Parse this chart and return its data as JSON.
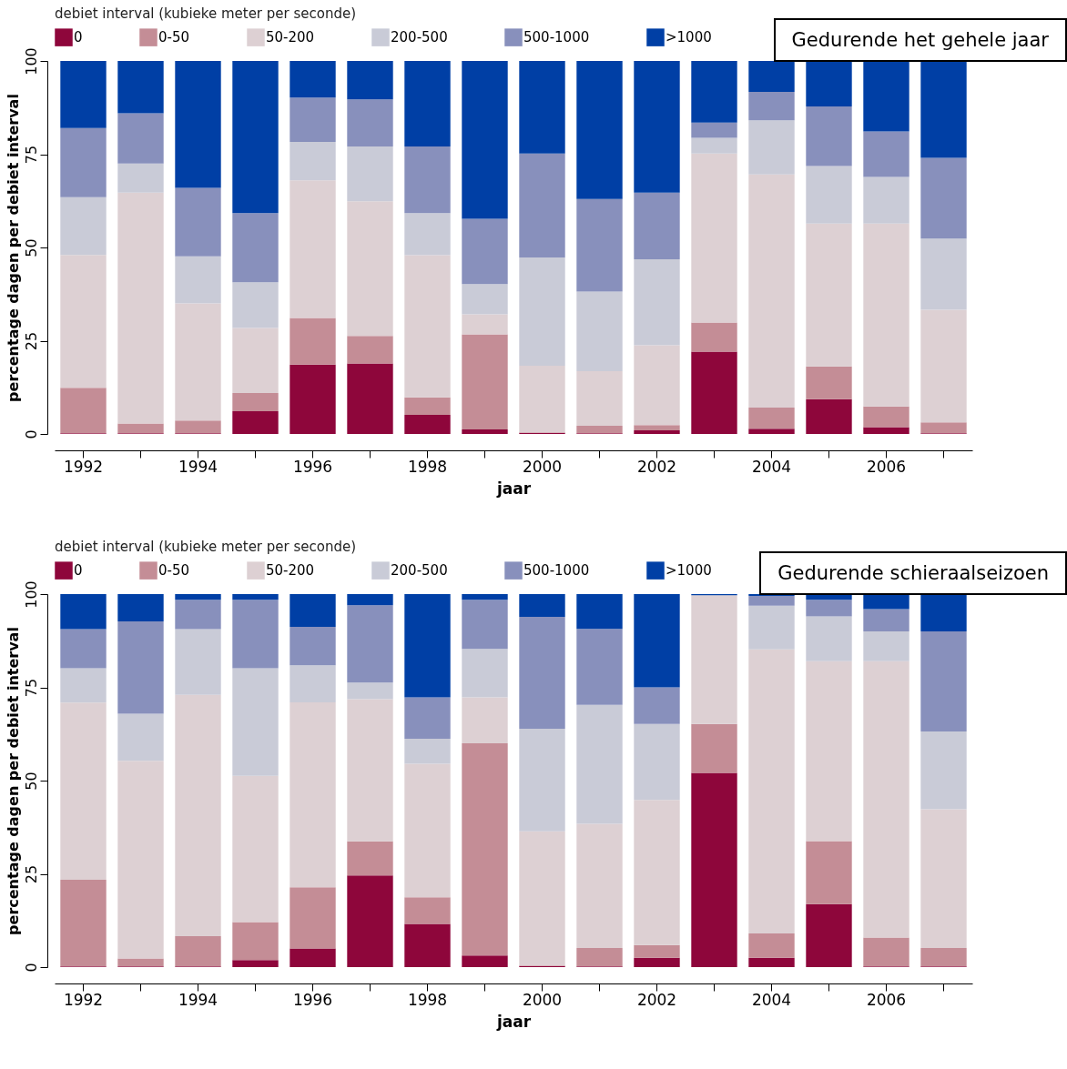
{
  "chart_data": [
    {
      "type": "bar",
      "stacked": true,
      "xlabel": "jaar",
      "ylabel": "percentage dagen per debiet interval",
      "legend_title": "debiet interval (kubieke meter per seconde)",
      "legend": "top left",
      "annotations": [
        "Gedurende het gehele jaar"
      ],
      "ylim": [
        0,
        100
      ],
      "yticks": [
        0,
        25,
        50,
        75,
        100
      ],
      "categories": [
        "1992",
        null,
        "1994",
        null,
        "1996",
        null,
        "1998",
        null,
        "2000",
        null,
        "2002",
        null,
        "2004",
        null,
        "2006",
        null
      ],
      "series": [
        {
          "name": "0",
          "color": "#8e063b",
          "values": [
            0.2,
            0.2,
            0.2,
            6.1,
            18.6,
            18.9,
            5.1,
            1.2,
            0.3,
            0.2,
            1.0,
            22.1,
            1.4,
            9.3,
            1.8,
            0.2
          ]
        },
        {
          "name": "0-50",
          "color": "#c48d96",
          "values": [
            12.2,
            2.6,
            3.4,
            4.9,
            12.5,
            7.4,
            4.7,
            25.5,
            0.1,
            2.0,
            1.4,
            7.8,
            5.7,
            8.8,
            5.6,
            2.9
          ]
        },
        {
          "name": "50-200",
          "color": "#ddd0d3",
          "values": [
            35.6,
            61.9,
            31.4,
            17.4,
            36.9,
            36.1,
            38.1,
            5.4,
            17.9,
            14.6,
            21.4,
            45.3,
            62.5,
            38.3,
            49.0,
            30.2
          ]
        },
        {
          "name": "200-500",
          "color": "#c9cbd7",
          "values": [
            15.5,
            7.8,
            12.6,
            12.3,
            10.3,
            14.7,
            11.3,
            8.1,
            29.0,
            21.4,
            23.0,
            4.2,
            14.5,
            15.4,
            12.5,
            19.1
          ]
        },
        {
          "name": "500-1000",
          "color": "#8890bc",
          "values": [
            18.5,
            13.5,
            18.4,
            18.5,
            11.9,
            12.6,
            17.9,
            17.5,
            27.9,
            24.8,
            17.9,
            4.1,
            7.6,
            16.0,
            12.2,
            21.6
          ]
        },
        {
          "name": ">1000",
          "color": "#003fa5",
          "values": [
            18.0,
            14.0,
            34.0,
            40.8,
            9.8,
            10.3,
            22.9,
            42.3,
            24.8,
            37.0,
            35.3,
            16.5,
            8.3,
            12.2,
            18.9,
            26.0
          ]
        }
      ]
    },
    {
      "type": "bar",
      "stacked": true,
      "xlabel": "jaar",
      "ylabel": "percentage dagen per debiet interval",
      "legend_title": "debiet interval (kubieke meter per seconde)",
      "legend": "top left",
      "annotations": [
        "Gedurende schieraalseizoen"
      ],
      "ylim": [
        0,
        100
      ],
      "yticks": [
        0,
        25,
        50,
        75,
        100
      ],
      "categories": [
        "1992",
        null,
        "1994",
        null,
        "1996",
        null,
        "1998",
        null,
        "2000",
        null,
        "2002",
        null,
        "2004",
        null,
        "2006",
        null
      ],
      "series": [
        {
          "name": "0",
          "color": "#8e063b",
          "values": [
            0.2,
            0.2,
            0.2,
            1.9,
            5.0,
            24.6,
            11.6,
            3.1,
            0.3,
            0.2,
            2.5,
            52.1,
            2.5,
            16.9,
            0.2,
            0.2
          ]
        },
        {
          "name": "0-50",
          "color": "#c48d96",
          "values": [
            23.2,
            2.1,
            8.1,
            10.2,
            16.4,
            9.1,
            7.1,
            56.9,
            0.1,
            4.9,
            3.4,
            13.1,
            6.5,
            16.9,
            7.7,
            4.9
          ]
        },
        {
          "name": "50-200",
          "color": "#ddd0d3",
          "values": [
            47.5,
            53.0,
            64.7,
            39.2,
            49.6,
            38.1,
            35.8,
            12.3,
            36.0,
            33.3,
            38.9,
            34.5,
            76.2,
            48.2,
            74.1,
            37.2
          ]
        },
        {
          "name": "200-500",
          "color": "#c9cbd7",
          "values": [
            9.2,
            12.6,
            17.6,
            28.8,
            9.9,
            4.5,
            6.7,
            13.0,
            27.5,
            31.9,
            20.4,
            0,
            11.7,
            12.0,
            8.0,
            20.9
          ]
        },
        {
          "name": "500-1000",
          "color": "#8890bc",
          "values": [
            10.5,
            24.8,
            7.9,
            18.4,
            10.3,
            20.7,
            11.1,
            13.2,
            30.0,
            20.4,
            9.8,
            null,
            2.6,
            4.5,
            6.0,
            26.8
          ]
        },
        {
          "name": ">1000",
          "color": "#003fa5",
          "values": [
            9.4,
            7.3,
            1.5,
            1.5,
            8.8,
            3.0,
            27.7,
            1.5,
            6.1,
            9.3,
            25.0,
            0.3,
            0.5,
            1.5,
            4.0,
            10.0
          ]
        }
      ]
    }
  ]
}
